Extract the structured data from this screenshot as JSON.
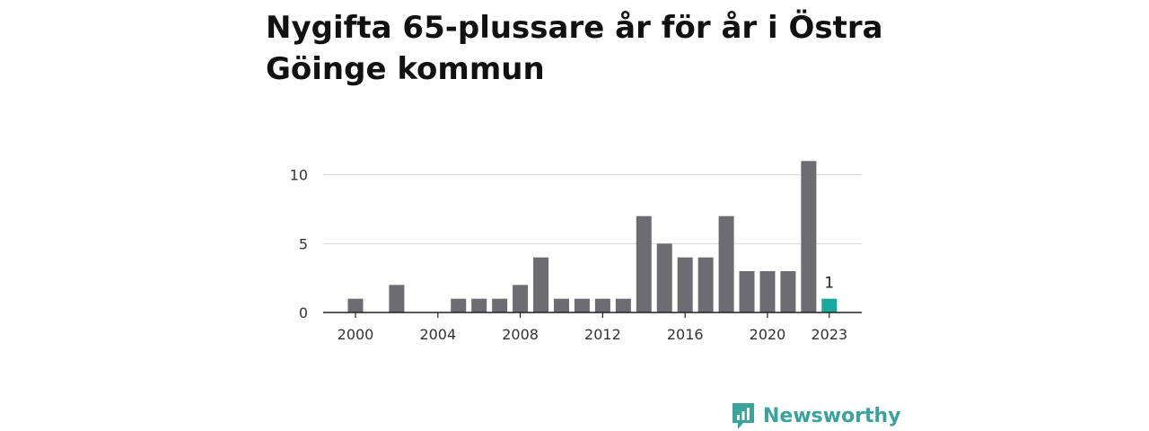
{
  "title": "Nygifta 65-plussare år för år i Östra Göinge kommun",
  "brand": {
    "name": "Newsworthy",
    "icon": "newsworthy-logo-icon"
  },
  "colors": {
    "bar": "#6d6c72",
    "highlight": "#18a89e",
    "grid": "#d6d6d6",
    "axis": "#222222"
  },
  "chart_data": {
    "type": "bar",
    "title": "Nygifta 65-plussare år för år i Östra Göinge kommun",
    "xlabel": "",
    "ylabel": "",
    "x": [
      2000,
      2001,
      2002,
      2003,
      2004,
      2005,
      2006,
      2007,
      2008,
      2009,
      2010,
      2011,
      2012,
      2013,
      2014,
      2015,
      2016,
      2017,
      2018,
      2019,
      2020,
      2021,
      2022,
      2023
    ],
    "values": [
      1,
      0,
      2,
      0,
      0,
      1,
      1,
      1,
      2,
      4,
      1,
      1,
      1,
      1,
      7,
      5,
      4,
      4,
      7,
      3,
      3,
      3,
      11,
      1
    ],
    "ylim": [
      0,
      12
    ],
    "yticks": [
      0,
      5,
      10
    ],
    "xticks": [
      2000,
      2004,
      2008,
      2012,
      2016,
      2020,
      2023
    ],
    "highlight": {
      "x": 2023,
      "label": "1"
    },
    "grid": true
  }
}
